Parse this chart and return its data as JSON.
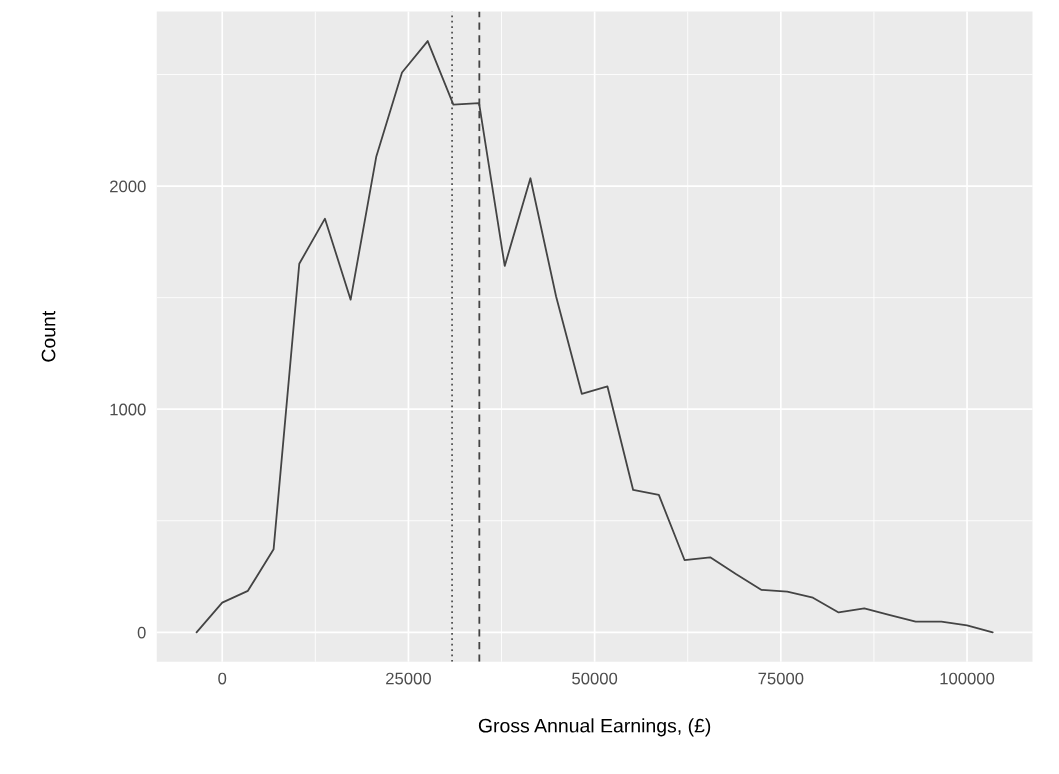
{
  "chart_data": {
    "type": "line",
    "xlabel": "Gross Annual Earnings, (£)",
    "ylabel": "Count",
    "x": [
      -3448,
      0,
      3448,
      6897,
      10345,
      13793,
      17241,
      20690,
      24138,
      27586,
      31034,
      34483,
      37931,
      41379,
      44828,
      48276,
      51724,
      55172,
      58621,
      62069,
      65517,
      68966,
      72414,
      75862,
      79310,
      82759,
      86207,
      89655,
      93103,
      96552,
      100000,
      103448
    ],
    "series": [
      {
        "color": "#444444",
        "values": [
          0,
          133,
          186,
          372,
          1652,
          1854,
          1491,
          2133,
          2509,
          2650,
          2365,
          2372,
          1642,
          2035,
          1505,
          1069,
          1102,
          638,
          616,
          324,
          336,
          261,
          190,
          182,
          155,
          89,
          107,
          77,
          48,
          48,
          31,
          0
        ]
      }
    ],
    "xlim": [
      -8793,
      108793
    ],
    "ylim": [
      -132,
      2782
    ],
    "xticks": [
      0,
      25000,
      50000,
      75000,
      100000
    ],
    "yticks": [
      0,
      1000,
      2000
    ],
    "ref_lines": [
      {
        "axis": "x",
        "value": 30860,
        "color": "#555555",
        "line_style": "dotted"
      },
      {
        "axis": "x",
        "value": 34520,
        "color": "#444444",
        "line_style": "dashed"
      }
    ],
    "grid": true,
    "marker": "none",
    "line_style": "solid"
  }
}
